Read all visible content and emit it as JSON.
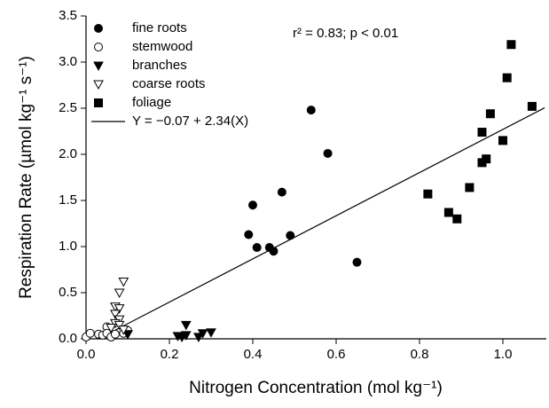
{
  "chart_data": {
    "type": "scatter",
    "xlabel": "Nitrogen Concentration (mol kg⁻¹)",
    "ylabel": "Respiration Rate (µmol kg⁻¹ s⁻¹)",
    "annotation": "r² = 0.83; p < 0.01",
    "xlim": [
      0,
      1.1
    ],
    "ylim": [
      0,
      3.5
    ],
    "xticks": [
      {
        "value": 0,
        "label": "0.0"
      },
      0.2,
      0.4,
      0.6,
      0.8,
      {
        "value": 1,
        "label": "1.0"
      }
    ],
    "yticks": [
      {
        "value": 0,
        "label": "0.0"
      },
      0.5,
      {
        "value": 1,
        "label": "1.0"
      },
      1.5,
      {
        "value": 2,
        "label": "2.0"
      },
      2.5,
      {
        "value": 3,
        "label": "3.0"
      },
      3.5
    ],
    "legend": "upper left",
    "series": [
      {
        "name": "fine roots",
        "marker": "circle",
        "color": "#000000",
        "x": [
          0.39,
          0.4,
          0.41,
          0.44,
          0.45,
          0.47,
          0.49,
          0.54,
          0.58,
          0.65
        ],
        "values": [
          1.13,
          1.45,
          0.99,
          0.99,
          0.95,
          1.59,
          1.12,
          2.48,
          2.01,
          0.83
        ]
      },
      {
        "name": "stemwood",
        "marker": "circle-open",
        "color": "#000000",
        "x": [
          0.0,
          0.01,
          0.03,
          0.04,
          0.05,
          0.05,
          0.06,
          0.07,
          0.09,
          0.1
        ],
        "values": [
          0.02,
          0.06,
          0.05,
          0.04,
          0.13,
          0.06,
          0.02,
          0.05,
          0.06,
          0.09
        ]
      },
      {
        "name": "branches",
        "marker": "triangle-down",
        "color": "#000000",
        "x": [
          0.1,
          0.22,
          0.23,
          0.24,
          0.24,
          0.27,
          0.28,
          0.3
        ],
        "values": [
          0.05,
          0.03,
          0.02,
          0.04,
          0.15,
          0.02,
          0.06,
          0.07
        ]
      },
      {
        "name": "coarse roots",
        "marker": "triangle-down-open",
        "color": "#000000",
        "x": [
          0.09,
          0.08,
          0.07,
          0.08,
          0.07,
          0.08,
          0.07,
          0.08,
          0.09,
          0.06
        ],
        "values": [
          0.62,
          0.5,
          0.35,
          0.33,
          0.27,
          0.21,
          0.17,
          0.15,
          0.1,
          0.12
        ]
      },
      {
        "name": "foliage",
        "marker": "square",
        "color": "#000000",
        "x": [
          0.82,
          0.87,
          0.89,
          0.92,
          0.95,
          0.95,
          0.96,
          0.97,
          1.0,
          1.01,
          1.02,
          1.07
        ],
        "values": [
          1.57,
          1.37,
          1.3,
          1.64,
          2.24,
          1.91,
          1.95,
          2.44,
          2.15,
          2.83,
          3.19,
          2.52
        ]
      }
    ],
    "fit": {
      "name": "Y = −0.07 + 2.34(X)",
      "intercept": -0.07,
      "slope": 2.34,
      "color": "#000000"
    }
  }
}
